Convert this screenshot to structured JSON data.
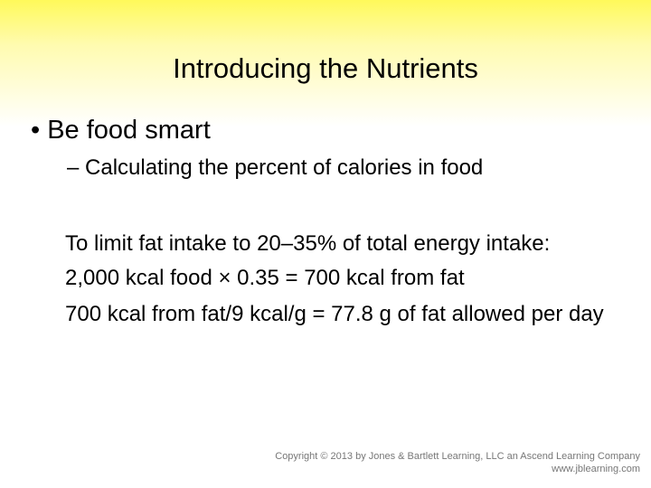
{
  "title": "Introducing the Nutrients",
  "bullets": [
    {
      "text": "Be food smart",
      "sub": [
        "Calculating the percent of calories in food"
      ]
    }
  ],
  "body": [
    "To limit fat intake to 20–35% of total energy intake:",
    "2,000 kcal food × 0.35  = 700 kcal from fat",
    "700 kcal from fat/9 kcal/g = 77.8 g of fat allowed per day"
  ],
  "footer": [
    "Copyright © 2013 by Jones & Bartlett Learning, LLC an Ascend Learning Company",
    "www.jblearning.com"
  ]
}
